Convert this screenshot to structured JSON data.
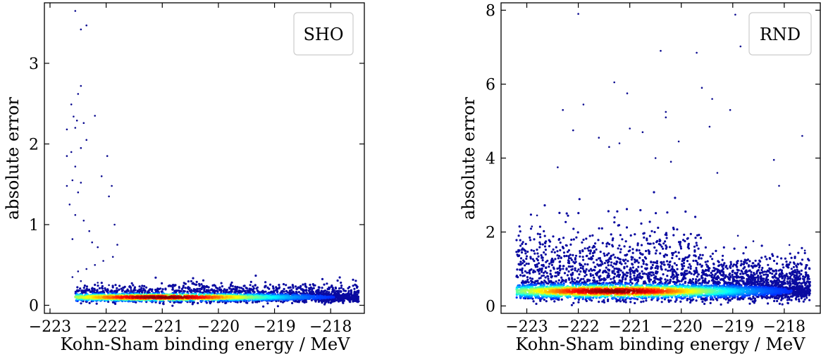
{
  "chart_data": [
    {
      "type": "scatter",
      "panel_label": "SHO",
      "xlabel": "Kohn-Sham binding energy / MeV",
      "ylabel": "absolute error",
      "xlim": [
        -223.1,
        -217.4
      ],
      "ylim": [
        -0.1,
        3.75
      ],
      "xticks": [
        -223,
        -222,
        -221,
        -220,
        -219,
        -218
      ],
      "xtick_labels": [
        "−223",
        "−222",
        "−221",
        "−220",
        "−219",
        "−218"
      ],
      "yticks": [
        0,
        1,
        2,
        3
      ],
      "ytick_labels": [
        "0",
        "1",
        "2",
        "3"
      ],
      "grid": false,
      "legend_position": "top-right",
      "colormap": "jet (point density)",
      "density_band": {
        "x_start": -222.55,
        "x_end": -217.5,
        "y_center": 0.1,
        "y_halfwidth": 0.05,
        "peak_x": -221.0
      },
      "outliers": [
        [
          -222.55,
          3.65
        ],
        [
          -222.45,
          3.42
        ],
        [
          -222.35,
          3.47
        ],
        [
          -222.45,
          2.72
        ],
        [
          -222.5,
          2.62
        ],
        [
          -222.62,
          2.49
        ],
        [
          -222.58,
          2.34
        ],
        [
          -222.52,
          2.29
        ],
        [
          -222.4,
          2.26
        ],
        [
          -222.55,
          2.2
        ],
        [
          -222.7,
          2.18
        ],
        [
          -222.2,
          2.35
        ],
        [
          -222.35,
          2.05
        ],
        [
          -222.45,
          1.95
        ],
        [
          -222.62,
          1.9
        ],
        [
          -222.7,
          1.85
        ],
        [
          -222.55,
          1.72
        ],
        [
          -222.6,
          1.55
        ],
        [
          -222.45,
          1.52
        ],
        [
          -222.5,
          1.4
        ],
        [
          -222.7,
          1.48
        ],
        [
          -222.65,
          1.25
        ],
        [
          -222.55,
          1.12
        ],
        [
          -222.4,
          1.05
        ],
        [
          -222.3,
          0.92
        ],
        [
          -222.6,
          0.82
        ],
        [
          -222.25,
          0.78
        ],
        [
          -222.15,
          0.72
        ],
        [
          -222.08,
          1.6
        ],
        [
          -221.9,
          1.48
        ],
        [
          -221.95,
          1.35
        ],
        [
          -221.98,
          1.85
        ],
        [
          -221.85,
          1.0
        ],
        [
          -221.8,
          0.75
        ],
        [
          -221.88,
          0.6
        ],
        [
          -222.05,
          0.55
        ],
        [
          -222.2,
          0.5
        ],
        [
          -222.35,
          0.45
        ],
        [
          -222.5,
          0.42
        ],
        [
          -222.6,
          0.35
        ],
        [
          -222.45,
          0.3
        ],
        [
          -222.15,
          0.28
        ],
        [
          -221.95,
          0.25
        ],
        [
          -221.7,
          0.22
        ],
        [
          -221.5,
          0.2
        ],
        [
          -220.6,
          0.27
        ],
        [
          -220.45,
          0.28
        ],
        [
          -220.7,
          0.23
        ]
      ]
    },
    {
      "type": "scatter",
      "panel_label": "RND",
      "xlabel": "Kohn-Sham binding energy / MeV",
      "ylabel": "absolute error",
      "xlim": [
        -223.5,
        -217.3
      ],
      "ylim": [
        -0.2,
        8.2
      ],
      "xticks": [
        -223,
        -222,
        -221,
        -220,
        -219,
        -218
      ],
      "xtick_labels": [
        "−223",
        "−222",
        "−221",
        "−220",
        "−219",
        "−218"
      ],
      "yticks": [
        0,
        2,
        4,
        6,
        8
      ],
      "ytick_labels": [
        "0",
        "2",
        "4",
        "6",
        "8"
      ],
      "grid": false,
      "legend_position": "top-right",
      "colormap": "jet (point density)",
      "density_band": {
        "x_start": -223.2,
        "x_end": -217.5,
        "y_center": 0.4,
        "y_halfwidth": 0.2,
        "peak_x": -221.3
      },
      "outliers": [
        [
          -222.0,
          7.9
        ],
        [
          -220.4,
          6.9
        ],
        [
          -219.7,
          6.85
        ],
        [
          -218.95,
          7.88
        ],
        [
          -218.85,
          7.02
        ],
        [
          -221.3,
          6.05
        ],
        [
          -221.9,
          5.45
        ],
        [
          -222.3,
          5.3
        ],
        [
          -221.05,
          5.75
        ],
        [
          -219.6,
          5.9
        ],
        [
          -220.3,
          5.25
        ],
        [
          -219.05,
          5.3
        ],
        [
          -220.3,
          5.1
        ],
        [
          -219.45,
          4.85
        ],
        [
          -219.4,
          5.6
        ],
        [
          -222.1,
          4.75
        ],
        [
          -221.0,
          4.8
        ],
        [
          -221.6,
          4.55
        ],
        [
          -220.75,
          4.7
        ],
        [
          -220.05,
          4.45
        ],
        [
          -221.4,
          4.3
        ],
        [
          -221.2,
          4.4
        ],
        [
          -217.65,
          4.6
        ],
        [
          -222.4,
          3.75
        ],
        [
          -220.5,
          4.0
        ],
        [
          -220.2,
          3.9
        ],
        [
          -218.2,
          3.95
        ],
        [
          -218.1,
          3.25
        ],
        [
          -219.3,
          3.6
        ],
        [
          -222.8,
          2.45
        ],
        [
          -222.9,
          2.15
        ],
        [
          -218.9,
          1.9
        ],
        [
          -218.6,
          1.75
        ],
        [
          -217.6,
          1.5
        ],
        [
          -217.9,
          1.65
        ]
      ]
    }
  ]
}
